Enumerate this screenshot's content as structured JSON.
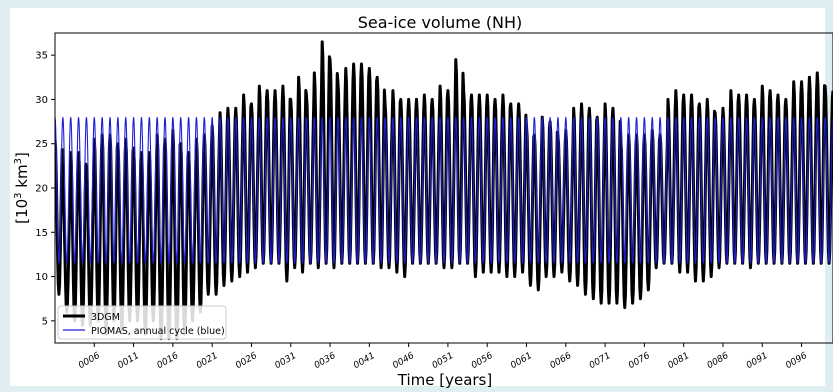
{
  "chart_data": {
    "type": "line",
    "title": "Sea-ice volume (NH)",
    "xlabel": "Time [years]",
    "ylabel_main": "[10",
    "ylabel_sup": "3",
    "ylabel_unit": " km",
    "ylabel_unit_sup": "3",
    "ylabel_close": "]",
    "xlim": [
      1,
      100
    ],
    "ylim": [
      2.5,
      37.5
    ],
    "yticks": [
      5,
      10,
      15,
      20,
      25,
      30,
      35
    ],
    "xticks": [
      "0006",
      "0011",
      "0016",
      "0021",
      "0026",
      "0031",
      "0036",
      "0041",
      "0046",
      "0051",
      "0056",
      "0061",
      "0066",
      "0071",
      "0076",
      "0081",
      "0086",
      "0091",
      "0096"
    ],
    "xtick_years": [
      6,
      11,
      16,
      21,
      26,
      31,
      36,
      41,
      46,
      51,
      56,
      61,
      66,
      71,
      76,
      81,
      86,
      91,
      96
    ],
    "legend_position": "bottom-left",
    "series": [
      {
        "name": "3DGM",
        "color": "#000000",
        "annual_max": [
          25.5,
          20,
          24,
          24,
          22,
          25.5,
          26,
          26,
          25,
          25.5,
          24.5,
          24,
          24,
          26,
          25.5,
          26.5,
          25,
          24,
          25.5,
          26,
          27,
          28.5,
          29,
          29,
          30.5,
          29.5,
          31.5,
          31,
          31,
          31.5,
          30,
          32.5,
          30.5,
          33,
          36.5,
          34.5,
          32,
          33.5,
          34,
          34,
          33.5,
          32.5,
          29.5,
          31,
          30,
          30,
          30,
          30.5,
          30,
          31.5,
          31,
          34.5,
          31,
          30.5,
          30.5,
          30.5,
          30,
          30.5,
          29.5,
          29.5,
          27,
          26,
          28,
          27.5,
          26,
          26.5,
          29,
          29.5,
          29,
          28,
          29.5,
          29,
          25.5,
          26,
          26,
          26,
          26.5,
          26,
          30,
          31,
          30.5,
          30.5,
          29.5,
          30,
          28.5,
          29,
          31,
          30.5,
          30.5,
          30,
          31.5,
          31,
          30.5,
          30,
          32,
          32,
          32.5,
          33,
          31.5,
          31
        ],
        "annual_min": [
          8,
          6,
          5,
          4.5,
          4.5,
          5,
          3.5,
          5,
          4,
          5,
          5,
          3.5,
          5,
          3,
          3,
          3,
          3.5,
          5,
          6,
          8,
          8,
          9,
          9.5,
          10,
          10.5,
          11,
          11.5,
          11.5,
          11.5,
          9.5,
          11,
          10.5,
          11.5,
          11,
          11.5,
          11,
          11.5,
          11.5,
          11.5,
          11.5,
          11.5,
          11,
          11,
          10.5,
          10,
          11.5,
          11.5,
          11.5,
          11.5,
          11,
          11,
          11.5,
          11.5,
          10,
          10.5,
          10.5,
          10.5,
          10,
          10,
          10.5,
          9,
          8.5,
          10,
          10,
          10.5,
          9.5,
          9,
          8,
          7.5,
          7,
          7,
          7,
          6.5,
          7,
          7.5,
          8.5,
          11,
          11.5,
          11.5,
          10.5,
          10.5,
          9.5,
          9.5,
          10,
          11,
          11.5,
          11.5,
          11.5,
          11,
          11.5,
          11.5,
          11.5,
          11.5,
          11.5,
          11.5,
          11.5,
          11.5,
          11.5,
          11.5,
          11.5
        ]
      },
      {
        "name": "PIOMAS, annual cycle (blue)",
        "color": "#1f1fd6",
        "annual_max": 28,
        "annual_min": 11.5
      }
    ]
  }
}
